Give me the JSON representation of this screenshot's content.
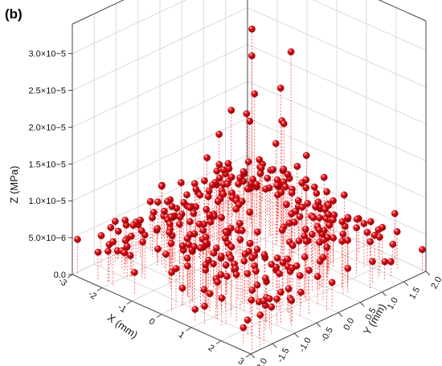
{
  "panel_label": "(b)",
  "chart_data": {
    "type": "scatter3d",
    "title": "",
    "xlabel": "X (mm)",
    "ylabel": "Y (mm)",
    "zlabel": "Z (MPa)",
    "xlim": [
      -3,
      3
    ],
    "ylim": [
      -2,
      2
    ],
    "zlim": [
      0,
      3.4e-05
    ],
    "x_ticks": [
      "-3",
      "-2",
      "-1",
      "0",
      "1",
      "2",
      "3"
    ],
    "y_ticks": [
      "-2.0",
      "-1.5",
      "-1.0",
      "-0.5",
      "0.0",
      "0.5",
      "1.0",
      "1.5",
      "2.0"
    ],
    "z_ticks": [
      "0.0",
      "5.0×10−6",
      "1.0×10−5",
      "1.5×10−5",
      "2.0×10−5",
      "2.5×10−5",
      "3.0×10−5"
    ],
    "z_tick_values": [
      0,
      5e-06,
      1e-05,
      1.5e-05,
      2e-05,
      2.5e-05,
      3e-05
    ],
    "grid": true,
    "marker_color": "#e8141b",
    "stem_color": "#ff3030",
    "points": [
      {
        "x": 0.02,
        "y": 0.05,
        "z": 3.3e-05
      },
      {
        "x": -0.35,
        "y": 0.3,
        "z": 2.8e-05
      },
      {
        "x": 0.45,
        "y": 0.65,
        "z": 2.9e-05
      },
      {
        "x": -0.6,
        "y": 0.0,
        "z": 2.1e-05
      },
      {
        "x": 0.55,
        "y": -0.25,
        "z": 2.6e-05
      },
      {
        "x": -0.2,
        "y": -0.55,
        "z": 2e-05
      },
      {
        "x": 0.25,
        "y": 0.55,
        "z": 2.4e-05
      },
      {
        "x": 0.8,
        "y": 0.25,
        "z": 2.1e-05
      },
      {
        "x": -0.75,
        "y": 0.45,
        "z": 1.9e-05
      },
      {
        "x": 0.1,
        "y": -0.75,
        "z": 1.7e-05
      },
      {
        "x": -0.15,
        "y": 0.85,
        "z": 1.8e-05
      },
      {
        "x": 0.95,
        "y": -0.1,
        "z": 1.6e-05
      },
      {
        "x": -0.9,
        "y": -0.35,
        "z": 1.5e-05
      },
      {
        "x": 0.6,
        "y": 0.9,
        "z": 1.45e-05
      },
      {
        "x": -0.5,
        "y": 0.95,
        "z": 1.4e-05
      },
      {
        "x": 0.35,
        "y": -0.95,
        "z": 1.3e-05
      },
      {
        "x": -1.0,
        "y": 0.2,
        "z": 1.25e-05
      },
      {
        "x": 1.1,
        "y": 0.55,
        "z": 1.2e-05
      },
      {
        "x": 0.9,
        "y": 1.1,
        "z": 1.15e-05
      },
      {
        "x": -0.45,
        "y": -1.05,
        "z": 1.1e-05
      },
      {
        "x": -2.85,
        "y": 1.95,
        "z": 1e-05
      },
      {
        "x": 2.9,
        "y": -1.9,
        "z": 8.2e-06
      },
      {
        "x": 2.1,
        "y": 1.9,
        "z": 6.5e-06
      },
      {
        "x": 2.4,
        "y": 1.75,
        "z": 5e-06
      },
      {
        "x": -2.6,
        "y": 1.75,
        "z": 5.5e-06
      },
      {
        "x": -2.35,
        "y": 1.9,
        "z": 5.2e-06
      },
      {
        "x": 2.85,
        "y": -1.6,
        "z": 5.8e-06
      },
      {
        "x": -2.9,
        "y": -1.95,
        "z": 4.8e-06
      },
      {
        "x": 2.95,
        "y": -1.75,
        "z": 4.5e-06
      },
      {
        "x": 2.95,
        "y": 1.95,
        "z": 3e-06
      },
      {
        "x": -1.4,
        "y": 1.2,
        "z": 8.5e-06
      },
      {
        "x": 1.3,
        "y": -1.3,
        "z": 8e-06
      },
      {
        "x": 0.0,
        "y": 1.3,
        "z": 9e-06
      },
      {
        "x": 0.0,
        "y": -1.25,
        "z": 8.8e-06
      },
      {
        "x": 1.35,
        "y": 0.0,
        "z": 9.2e-06
      },
      {
        "x": -1.35,
        "y": 0.0,
        "z": 8.7e-06
      },
      {
        "x": 0.8,
        "y": -0.8,
        "z": 9.5e-06
      },
      {
        "x": -0.8,
        "y": 0.8,
        "z": 9.8e-06
      },
      {
        "x": 1.0,
        "y": 0.9,
        "z": 8.9e-06
      },
      {
        "x": -1.0,
        "y": -0.9,
        "z": 8.3e-06
      },
      {
        "x": 1.8,
        "y": 1.4,
        "z": 6e-06
      },
      {
        "x": -1.9,
        "y": -1.4,
        "z": 5.5e-06
      },
      {
        "x": 1.9,
        "y": -0.6,
        "z": 5e-06
      },
      {
        "x": -1.8,
        "y": 0.6,
        "z": 5.8e-06
      }
    ]
  }
}
